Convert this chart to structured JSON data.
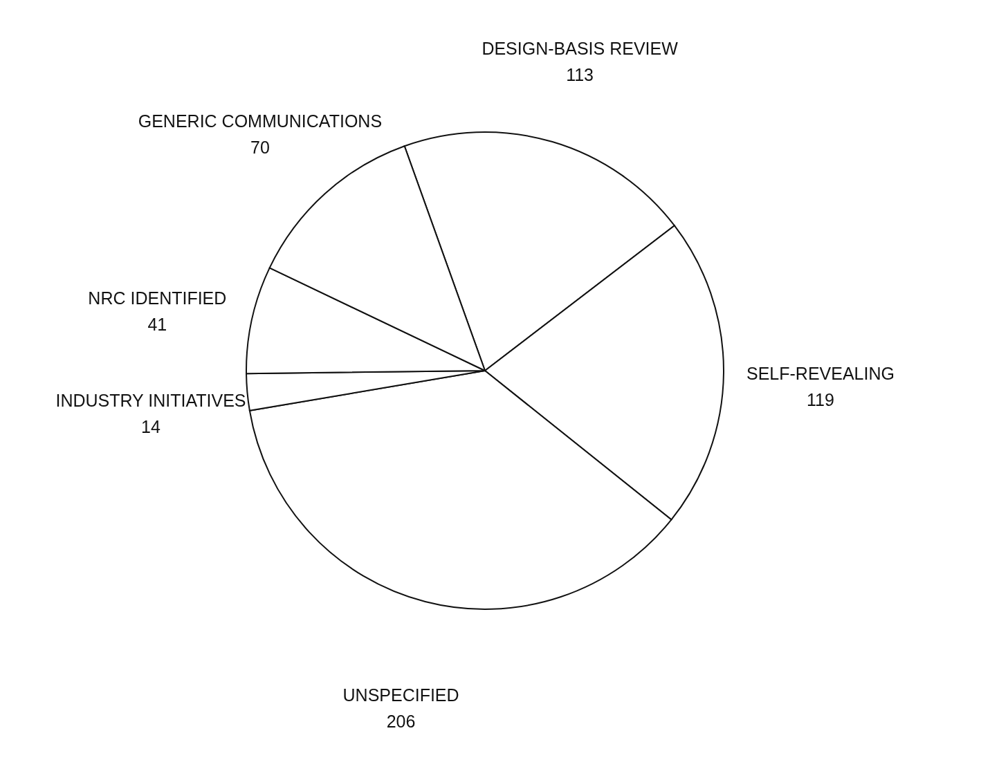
{
  "chart_data": {
    "type": "pie",
    "categories": [
      "DESIGN-BASIS REVIEW",
      "SELF-REVEALING",
      "UNSPECIFIED",
      "INDUSTRY INITIATIVES",
      "NRC IDENTIFIED",
      "GENERIC COMMUNICATIONS"
    ],
    "values": [
      113,
      119,
      206,
      14,
      41,
      70
    ],
    "colors": [
      "#ffffff",
      "#ffffff",
      "#ffffff",
      "#ffffff",
      "#ffffff",
      "#ffffff"
    ],
    "data_labels": true
  }
}
